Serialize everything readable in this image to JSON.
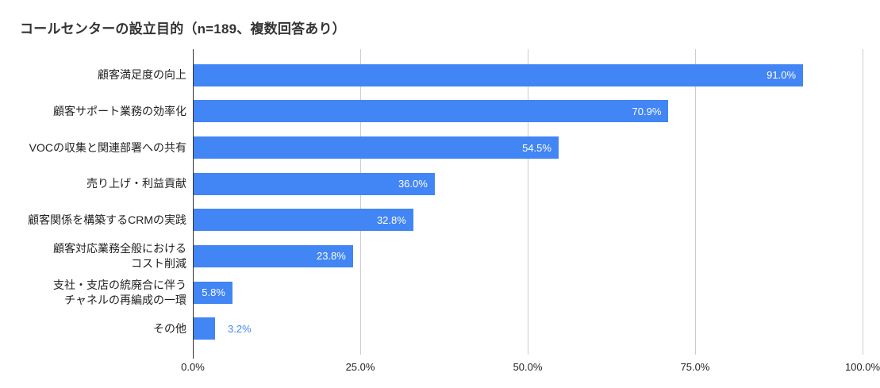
{
  "title": "コールセンターの設立目的（n=189、複数回答あり）",
  "colors": {
    "bar": "#4285f4",
    "value_label_inside": "#ffffff",
    "value_label_outside": "#4285f4",
    "gridline": "#cccccc",
    "axis_line": "#333333",
    "title_text": "#333333",
    "label_text": "#222222",
    "background": "#ffffff"
  },
  "chart_data": {
    "type": "bar",
    "orientation": "horizontal",
    "title": "コールセンターの設立目的（n=189、複数回答あり）",
    "categories": [
      "顧客満足度の向上",
      "顧客サポート業務の効率化",
      "VOCの収集と関連部署への共有",
      "売り上げ・利益貢献",
      "顧客関係を構築するCRMの実践",
      "顧客対応業務全般における\nコスト削減",
      "支社・支店の統廃合に伴う\nチャネルの再編成の一環",
      "その他"
    ],
    "values": [
      91.0,
      70.9,
      54.5,
      36.0,
      32.8,
      23.8,
      5.8,
      3.2
    ],
    "value_labels": [
      "91.0%",
      "70.9%",
      "54.5%",
      "36.0%",
      "32.8%",
      "23.8%",
      "5.8%",
      "3.2%"
    ],
    "label_positions": [
      "inside",
      "inside",
      "inside",
      "inside",
      "inside",
      "inside",
      "inside",
      "outside"
    ],
    "x_ticks": [
      {
        "value": 0,
        "label": "0.0%"
      },
      {
        "value": 25,
        "label": "25.0%"
      },
      {
        "value": 50,
        "label": "50.0%"
      },
      {
        "value": 75,
        "label": "75.0%"
      },
      {
        "value": 100,
        "label": "100.0%"
      }
    ],
    "xlabel": "",
    "ylabel": "",
    "xlim": [
      0,
      100
    ],
    "grid": true,
    "legend": "none"
  }
}
